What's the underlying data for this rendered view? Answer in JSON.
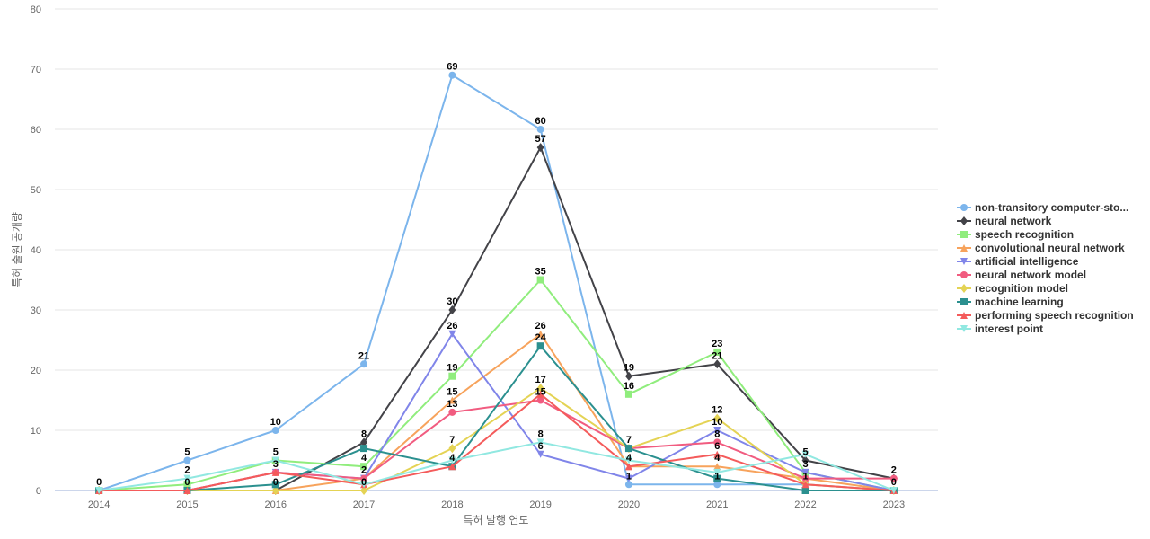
{
  "chart_data": {
    "type": "line",
    "title": "",
    "xlabel": "특허 발행 연도",
    "ylabel": "특허 출원 공개량",
    "ylim": [
      0,
      80
    ],
    "yticks": [
      0,
      10,
      20,
      30,
      40,
      50,
      60,
      70,
      80
    ],
    "categories": [
      "2014",
      "2015",
      "2016",
      "2017",
      "2018",
      "2019",
      "2020",
      "2021",
      "2022",
      "2023"
    ],
    "legend_position": "right",
    "series": [
      {
        "name": "non-transitory computer-sto...",
        "color": "#7cb5ec",
        "marker": "circle",
        "values": [
          0,
          5,
          10,
          21,
          69,
          60,
          1,
          1,
          1,
          0
        ]
      },
      {
        "name": "neural network",
        "color": "#434348",
        "marker": "diamond",
        "values": [
          0,
          0,
          0,
          8,
          30,
          57,
          19,
          21,
          5,
          2
        ]
      },
      {
        "name": "speech recognition",
        "color": "#90ed7d",
        "marker": "square",
        "values": [
          0,
          1,
          5,
          4,
          19,
          35,
          16,
          23,
          3,
          0
        ]
      },
      {
        "name": "convolutional neural network",
        "color": "#f7a35c",
        "marker": "triangle",
        "values": [
          0,
          0,
          0,
          2,
          15,
          26,
          4,
          4,
          2,
          0
        ]
      },
      {
        "name": "artificial intelligence",
        "color": "#8085e9",
        "marker": "triangle-down",
        "values": [
          0,
          0,
          3,
          2,
          26,
          6,
          2,
          10,
          3,
          0
        ]
      },
      {
        "name": "neural network model",
        "color": "#f15c80",
        "marker": "circle",
        "values": [
          0,
          0,
          3,
          2,
          13,
          15,
          7,
          8,
          2,
          2
        ]
      },
      {
        "name": "recognition model",
        "color": "#e4d354",
        "marker": "diamond",
        "values": [
          0,
          0,
          0,
          0,
          7,
          17,
          7,
          12,
          1,
          0
        ]
      },
      {
        "name": "machine learning",
        "color": "#2b908f",
        "marker": "square",
        "values": [
          0,
          0,
          1,
          7,
          4,
          24,
          7,
          2,
          0,
          0
        ]
      },
      {
        "name": "performing speech recognition",
        "color": "#f45b5b",
        "marker": "triangle",
        "values": [
          0,
          0,
          3,
          1,
          4,
          16,
          4,
          6,
          1,
          0
        ]
      },
      {
        "name": "interest point",
        "color": "#91e8e1",
        "marker": "triangle-down",
        "values": [
          0,
          2,
          5,
          1,
          5,
          8,
          5,
          3,
          6,
          0
        ]
      }
    ],
    "data_labels": [
      {
        "x": "2014",
        "value": 0
      },
      {
        "x": "2015",
        "value": 5
      },
      {
        "x": "2015",
        "value": 2
      },
      {
        "x": "2015",
        "value": 0
      },
      {
        "x": "2016",
        "value": 10
      },
      {
        "x": "2016",
        "value": 5
      },
      {
        "x": "2016",
        "value": 3
      },
      {
        "x": "2016",
        "value": 0
      },
      {
        "x": "2017",
        "value": 21
      },
      {
        "x": "2017",
        "value": 8
      },
      {
        "x": "2017",
        "value": 4
      },
      {
        "x": "2017",
        "value": 2
      },
      {
        "x": "2017",
        "value": 0
      },
      {
        "x": "2018",
        "value": 69
      },
      {
        "x": "2018",
        "value": 30
      },
      {
        "x": "2018",
        "value": 26
      },
      {
        "x": "2018",
        "value": 19
      },
      {
        "x": "2018",
        "value": 15
      },
      {
        "x": "2018",
        "value": 13
      },
      {
        "x": "2018",
        "value": 7
      },
      {
        "x": "2018",
        "value": 4
      },
      {
        "x": "2019",
        "value": 60
      },
      {
        "x": "2019",
        "value": 57
      },
      {
        "x": "2019",
        "value": 35
      },
      {
        "x": "2019",
        "value": 26
      },
      {
        "x": "2019",
        "value": 24
      },
      {
        "x": "2019",
        "value": 17
      },
      {
        "x": "2019",
        "value": 15
      },
      {
        "x": "2019",
        "value": 8
      },
      {
        "x": "2019",
        "value": 6
      },
      {
        "x": "2020",
        "value": 19
      },
      {
        "x": "2020",
        "value": 16
      },
      {
        "x": "2020",
        "value": 7
      },
      {
        "x": "2020",
        "value": 4
      },
      {
        "x": "2020",
        "value": 1
      },
      {
        "x": "2021",
        "value": 23
      },
      {
        "x": "2021",
        "value": 21
      },
      {
        "x": "2021",
        "value": 12
      },
      {
        "x": "2021",
        "value": 10
      },
      {
        "x": "2021",
        "value": 8
      },
      {
        "x": "2021",
        "value": 6
      },
      {
        "x": "2021",
        "value": 4
      },
      {
        "x": "2021",
        "value": 1
      },
      {
        "x": "2022",
        "value": 5
      },
      {
        "x": "2022",
        "value": 3
      },
      {
        "x": "2022",
        "value": 1
      },
      {
        "x": "2023",
        "value": 2
      },
      {
        "x": "2023",
        "value": 0
      }
    ]
  }
}
